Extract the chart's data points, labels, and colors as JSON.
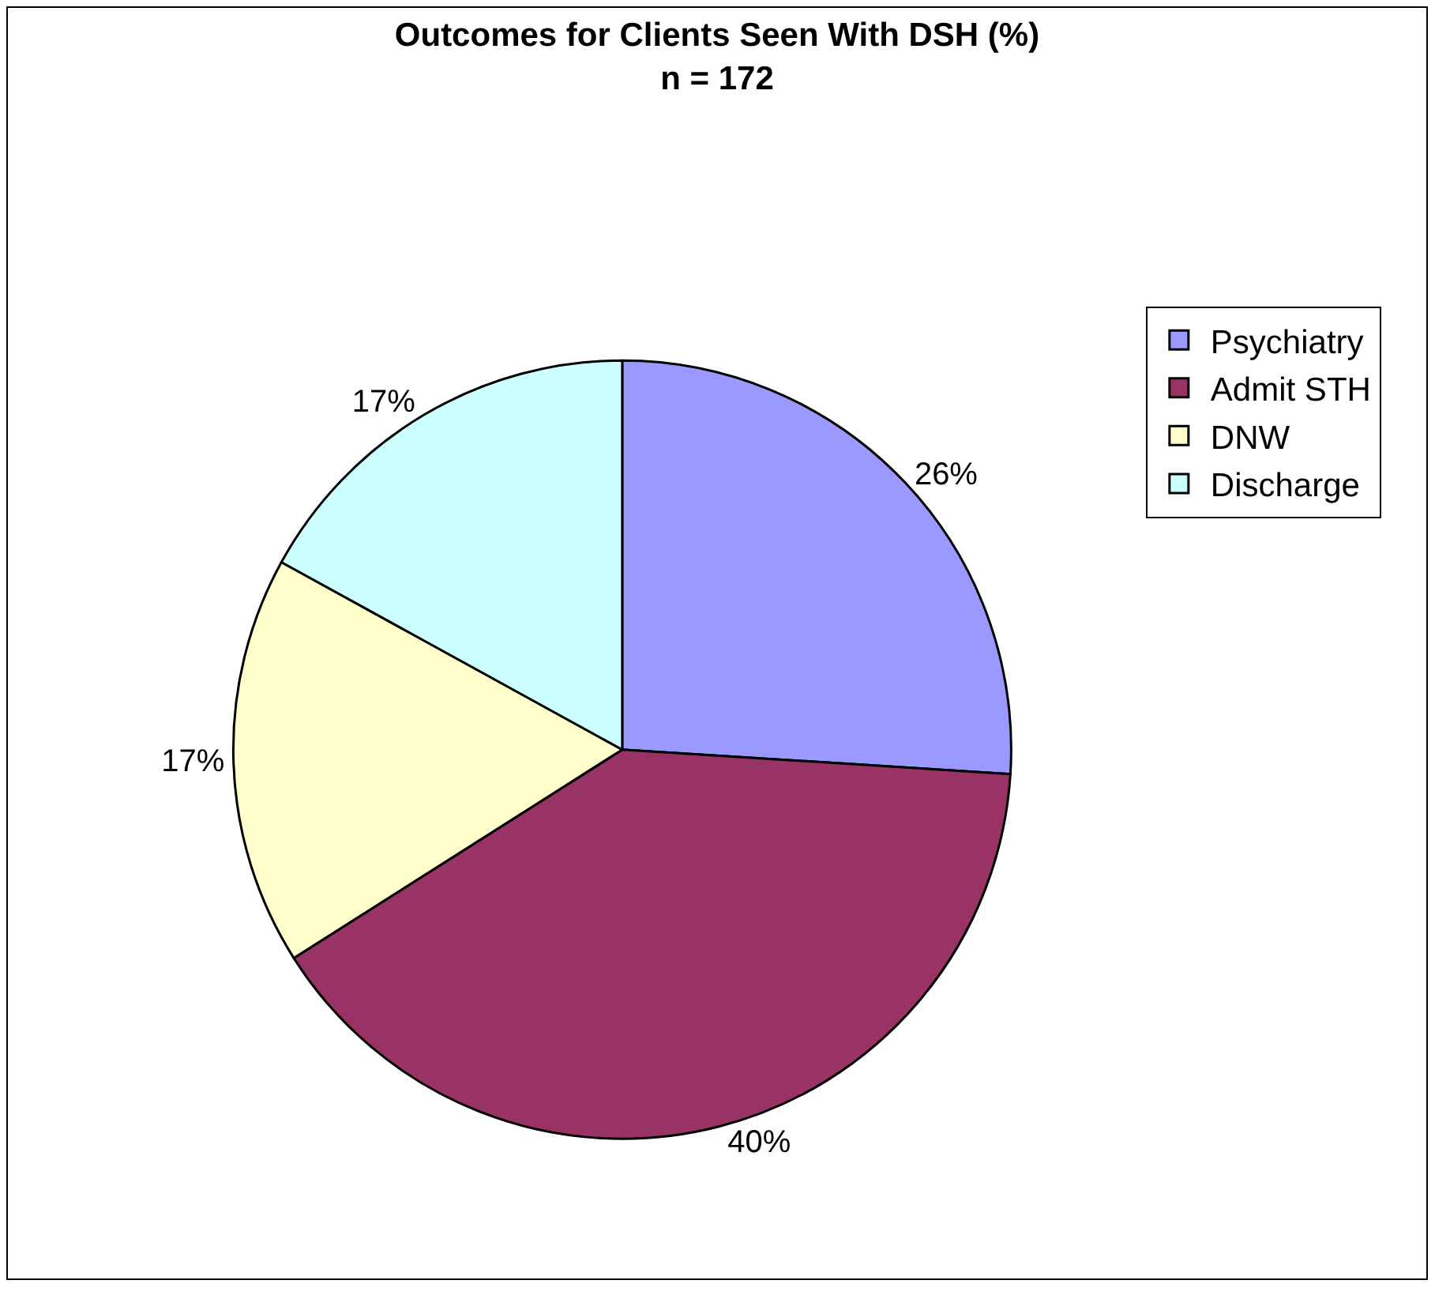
{
  "chart_data": {
    "type": "pie",
    "title": "Outcomes for Clients Seen With DSH (%)",
    "subtitle": "n = 172",
    "categories": [
      "Psychiatry",
      "Admit STH",
      "DNW",
      "Discharge"
    ],
    "values": [
      26,
      40,
      17,
      17
    ],
    "value_labels": [
      "26%",
      "40%",
      "17%",
      "17%"
    ],
    "colors": [
      "#9999ff",
      "#993366",
      "#ffffcc",
      "#ccffff"
    ],
    "legend": "top right"
  }
}
